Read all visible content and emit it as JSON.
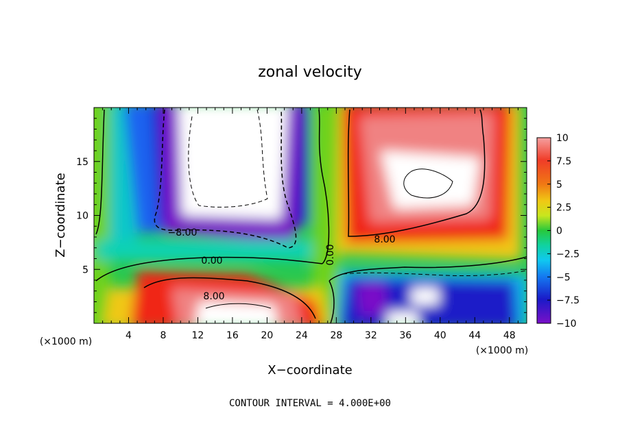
{
  "chart_data": {
    "type": "heatmap",
    "title": "zonal velocity",
    "xlabel": "X−coordinate",
    "ylabel": "Z−coordinate",
    "x_unit_left": "(×1000 m)",
    "x_unit_right": "(×1000 m)",
    "footer": "CONTOUR INTERVAL = 4.000E+00",
    "xlim": [
      0,
      50
    ],
    "ylim": [
      0,
      20
    ],
    "xticks": [
      "4",
      "8",
      "12",
      "16",
      "20",
      "24",
      "28",
      "32",
      "36",
      "40",
      "44",
      "48"
    ],
    "yticks": [
      "5",
      "10",
      "15"
    ],
    "colorbar": {
      "range": [
        -10,
        10
      ],
      "tick_labels": [
        "10",
        "7.5",
        "5",
        "2.5",
        "0",
        "−2.5",
        "−5",
        "−7.5",
        "−10"
      ]
    },
    "contour_labels": [
      "−8.00",
      "0.00",
      "0.00",
      "8.00",
      "8.00"
    ],
    "regions": [
      {
        "x": [
          9,
          24
        ],
        "z": [
          10,
          20
        ],
        "value": -10
      },
      {
        "x": [
          9,
          26
        ],
        "z": [
          8,
          10
        ],
        "value": -8
      },
      {
        "x": [
          28,
          50
        ],
        "z": [
          7,
          20
        ],
        "value": 8
      },
      {
        "x": [
          33,
          44
        ],
        "z": [
          10,
          15
        ],
        "value": 10
      },
      {
        "x": [
          5,
          26
        ],
        "z": [
          0,
          4.5
        ],
        "value": 8
      },
      {
        "x": [
          12,
          22
        ],
        "z": [
          0,
          2
        ],
        "value": 10
      },
      {
        "x": [
          29,
          50
        ],
        "z": [
          0,
          4.5
        ],
        "value": -8
      },
      {
        "x": [
          0,
          5
        ],
        "z": [
          0,
          20
        ],
        "value": 0
      }
    ]
  },
  "colors": {
    "scale": [
      "#7a10c8",
      "#1a1ac8",
      "#1a64f0",
      "#10b4f0",
      "#10d2b4",
      "#10c850",
      "#6ed21e",
      "#d2e61e",
      "#f0c814",
      "#f07814",
      "#f02814",
      "#f08282",
      "#ffffff"
    ]
  }
}
